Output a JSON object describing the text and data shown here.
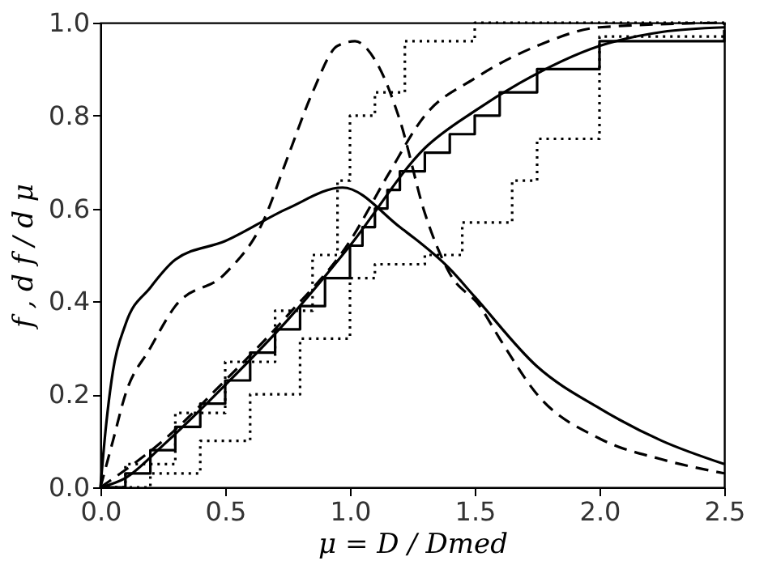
{
  "chart_data": {
    "type": "line",
    "xlabel": "μ = D / Dmed",
    "ylabel": "f ,     d f / d μ",
    "xlim": [
      0,
      2.5
    ],
    "xticks": [
      {
        "value": 0,
        "label": "0.0"
      },
      0.5,
      {
        "value": 1,
        "label": "1.0"
      },
      1.5,
      {
        "value": 2,
        "label": "2.0"
      },
      2.5
    ],
    "ylim": [
      0,
      1
    ],
    "yticks": [
      {
        "value": 0,
        "label": "0.0"
      },
      0.2,
      0.4,
      0.6,
      0.8,
      {
        "value": 1,
        "label": "1.0"
      }
    ],
    "grid": false,
    "marker": "none",
    "series": [
      {
        "line_style": "solid",
        "color": "#000000",
        "x": [
          0,
          0.02,
          0.05,
          0.1,
          0.2,
          0.3,
          0.5,
          0.75,
          0.97,
          1.2,
          1.4,
          1.5,
          1.75,
          2.0,
          2.25,
          2.5
        ],
        "values": [
          0,
          0.12,
          0.25,
          0.35,
          0.43,
          0.49,
          0.53,
          0.6,
          0.645,
          0.56,
          0.47,
          0.41,
          0.26,
          0.17,
          0.1,
          0.05
        ]
      },
      {
        "line_style": "dashed",
        "color": "#000000",
        "x": [
          0,
          0.05,
          0.1,
          0.2,
          0.3,
          0.5,
          0.65,
          0.75,
          0.85,
          0.95,
          1.02,
          1.1,
          1.2,
          1.3,
          1.4,
          1.52,
          1.6,
          1.75,
          2.0,
          2.25,
          2.5
        ],
        "values": [
          0,
          0.1,
          0.2,
          0.3,
          0.39,
          0.46,
          0.57,
          0.71,
          0.85,
          0.95,
          0.96,
          0.92,
          0.79,
          0.59,
          0.46,
          0.39,
          0.32,
          0.2,
          0.105,
          0.06,
          0.03
        ]
      },
      {
        "line_style": "solid",
        "color": "#000000",
        "x": [
          0,
          0.1,
          0.25,
          0.5,
          0.75,
          1.0,
          1.3,
          1.5,
          1.68,
          2.0,
          2.25,
          2.5
        ],
        "values": [
          0,
          0.02,
          0.09,
          0.22,
          0.36,
          0.52,
          0.73,
          0.81,
          0.87,
          0.95,
          0.98,
          0.99
        ]
      },
      {
        "line_style": "dashed",
        "color": "#000000",
        "x": [
          0,
          0.25,
          0.5,
          0.75,
          1.0,
          1.15,
          1.3,
          1.5,
          1.75,
          2.0,
          2.5
        ],
        "values": [
          0,
          0.1,
          0.23,
          0.37,
          0.53,
          0.67,
          0.8,
          0.88,
          0.95,
          0.99,
          1.0
        ]
      },
      {
        "type": "step",
        "line_style": "solid",
        "color": "#000000",
        "x": [
          0,
          0.1,
          0.2,
          0.3,
          0.4,
          0.5,
          0.6,
          0.7,
          0.8,
          0.9,
          1.0,
          1.05,
          1.1,
          1.15,
          1.2,
          1.3,
          1.4,
          1.5,
          1.6,
          1.75,
          2.0,
          2.5
        ],
        "values": [
          0,
          0.03,
          0.08,
          0.13,
          0.18,
          0.23,
          0.29,
          0.34,
          0.39,
          0.45,
          0.52,
          0.56,
          0.6,
          0.64,
          0.68,
          0.72,
          0.76,
          0.8,
          0.85,
          0.9,
          0.96,
          0.98
        ]
      },
      {
        "type": "step",
        "line_style": "dotted",
        "color": "#000000",
        "x": [
          0,
          0.1,
          0.3,
          0.5,
          0.7,
          0.85,
          0.95,
          1.0,
          1.1,
          1.22,
          1.5,
          1.9,
          2.5
        ],
        "values": [
          0,
          0.05,
          0.16,
          0.27,
          0.38,
          0.5,
          0.66,
          0.8,
          0.85,
          0.96,
          1.0,
          1.0,
          1.0
        ]
      },
      {
        "type": "step",
        "line_style": "dotted",
        "color": "#000000",
        "x": [
          0,
          0.2,
          0.4,
          0.6,
          0.8,
          1.0,
          1.1,
          1.3,
          1.45,
          1.65,
          1.75,
          2.0,
          2.5
        ],
        "values": [
          0,
          0.03,
          0.1,
          0.2,
          0.32,
          0.45,
          0.48,
          0.5,
          0.57,
          0.66,
          0.75,
          0.97,
          1.0
        ]
      }
    ]
  }
}
